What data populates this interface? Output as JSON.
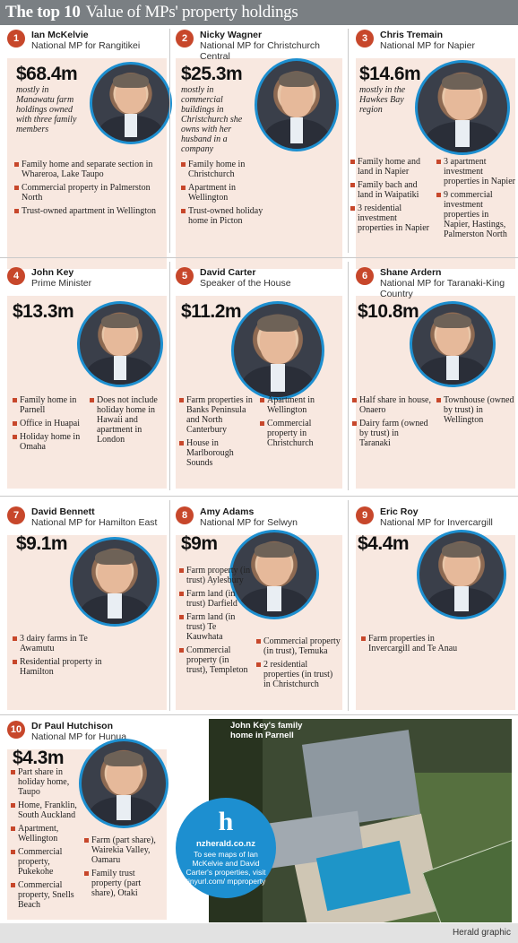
{
  "title": {
    "bold": "The top 10",
    "rest": "Value of MPs' property holdings"
  },
  "mps": [
    {
      "rank": "1",
      "name": "Ian McKelvie",
      "role": "National MP for Rangitikei",
      "amount": "$68.4m",
      "desc": "mostly in Manawatu farm holdings owned with three family members",
      "col1": [
        "Family home and separate section in Whareroa, Lake Taupo",
        "Commercial property in Palmerston North",
        "Trust-owned apartment in Wellington"
      ],
      "col2": []
    },
    {
      "rank": "2",
      "name": "Nicky Wagner",
      "role": "National MP for Christchurch Central",
      "amount": "$25.3m",
      "desc": "mostly in commercial buildings in Christchurch she owns with her husband in a company",
      "col1": [
        "Family home in Christchurch",
        "Apartment in Wellington",
        "Trust-owned holiday home in Picton"
      ],
      "col2": []
    },
    {
      "rank": "3",
      "name": "Chris Tremain",
      "role": "National MP for Napier",
      "amount": "$14.6m",
      "desc": "mostly in the Hawkes Bay region",
      "col1": [
        "Family home and land in Napier",
        "Family bach and land in Waipatiki",
        "3 residential investment properties in Napier"
      ],
      "col2": [
        "3 apartment investment properties in Napier",
        "9 commercial investment properties in Napier, Hastings, Palmerston North"
      ]
    },
    {
      "rank": "4",
      "name": "John Key",
      "role": "Prime Minister",
      "amount": "$13.3m",
      "desc": "",
      "col1": [
        "Family home in Parnell",
        "Office in Huapai",
        "Holiday home in Omaha"
      ],
      "col2": [
        "Does not include holiday home in Hawaii and apartment in London"
      ]
    },
    {
      "rank": "5",
      "name": "David Carter",
      "role": "Speaker of the House",
      "amount": "$11.2m",
      "desc": "",
      "col1": [
        "Farm properties in Banks Peninsula and North Canterbury",
        "House in Marlborough Sounds"
      ],
      "col2": [
        "Apartment in Wellington",
        "Commercial property in Christchurch"
      ]
    },
    {
      "rank": "6",
      "name": "Shane Ardern",
      "role": "National MP for Taranaki-King Country",
      "amount": "$10.8m",
      "desc": "",
      "col1": [
        "Half share in house, Onaero",
        "Dairy farm (owned by trust) in Taranaki"
      ],
      "col2": [
        "Townhouse (owned by trust) in Wellington"
      ]
    },
    {
      "rank": "7",
      "name": "David Bennett",
      "role": "National MP for Hamilton East",
      "amount": "$9.1m",
      "desc": "",
      "col1": [
        "3 dairy farms in Te Awamutu",
        "Residential property in Hamilton"
      ],
      "col2": []
    },
    {
      "rank": "8",
      "name": "Amy Adams",
      "role": "National MP for Selwyn",
      "amount": "$9m",
      "desc": "",
      "col1": [
        "Farm property (in trust) Aylesbury",
        "Farm land (in trust) Darfield",
        "Farm land (in trust) Te Kauwhata",
        "Commercial property (in trust), Templeton"
      ],
      "col2": [
        "Commercial property (in trust), Temuka",
        "2 residential properties (in trust) in Christchurch"
      ]
    },
    {
      "rank": "9",
      "name": "Eric Roy",
      "role": "National MP for Invercargill",
      "amount": "$4.4m",
      "desc": "",
      "col1": [
        "Farm properties in Invercargill and Te Anau"
      ],
      "col2": []
    },
    {
      "rank": "10",
      "name": "Dr Paul Hutchison",
      "role": "National MP for Hunua",
      "amount": "$4.3m",
      "desc": "",
      "col1": [
        "Part share in holiday home, Taupo",
        "Home, Franklin, South Auckland",
        "Apartment, Wellington",
        "Commercial property, Pukekohe",
        "Commercial property, Snells Beach"
      ],
      "col2": [
        "Farm (part share), Wairekia Valley, Oamaru",
        "Family trust property (part share), Otaki"
      ]
    }
  ],
  "house_caption": "John Key's family home in Parnell",
  "promo": {
    "logo": "h",
    "site": "nzherald.co.nz",
    "message": "To see maps of Ian McKelvie and David Carter's properties, visit tinyurl.com/ mpproperty"
  },
  "credit": "Herald graphic",
  "colors": {
    "accent": "#c7472b",
    "photo_ring": "#1d8fd0",
    "panel": "#f8e8e0",
    "title_bar": "#7a7f83"
  }
}
